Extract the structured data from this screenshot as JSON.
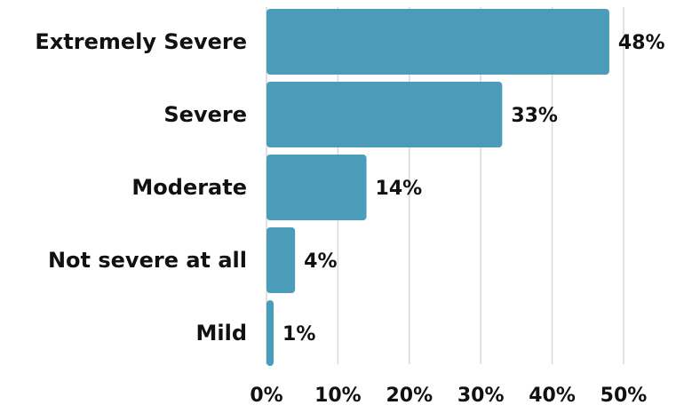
{
  "chart_data": {
    "type": "bar",
    "orientation": "horizontal",
    "title": "",
    "xlabel": "",
    "ylabel": "",
    "categories": [
      "Extremely Severe",
      "Severe",
      "Moderate",
      "Not severe at all",
      "Mild"
    ],
    "values": [
      48,
      33,
      14,
      4,
      1
    ],
    "value_labels": [
      "48%",
      "33%",
      "14%",
      "4%",
      "1%"
    ],
    "xlim": [
      0,
      50
    ],
    "xticks": [
      0,
      10,
      20,
      30,
      40,
      50
    ],
    "xtick_labels": [
      "0%",
      "10%",
      "20%",
      "30%",
      "40%",
      "50%"
    ],
    "grid": "vertical",
    "legend": "none",
    "colors": {
      "bar": "#4a9cb8",
      "grid": "#d9d9d9",
      "text": "#111111"
    }
  }
}
